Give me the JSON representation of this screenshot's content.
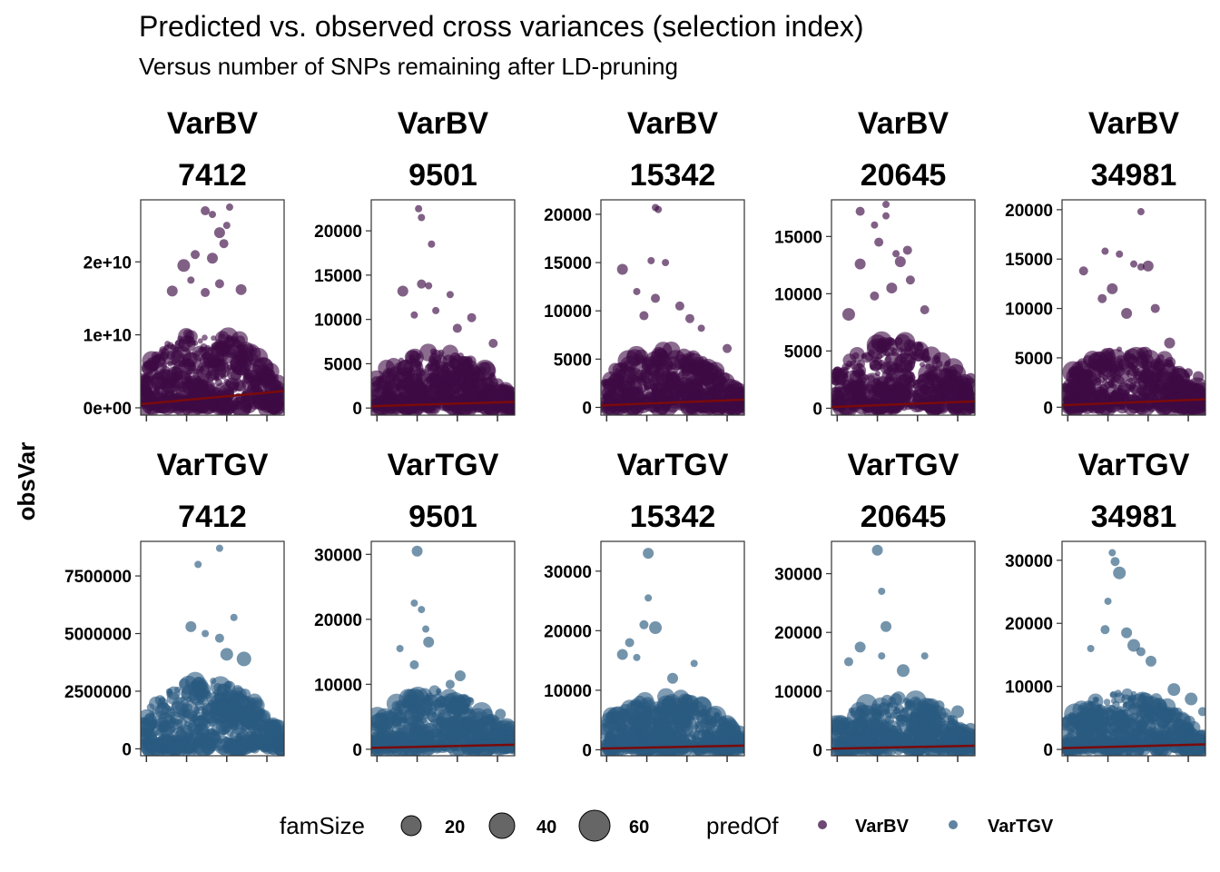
{
  "title": "Predicted vs. observed cross variances (selection index)",
  "subtitle": "Versus number of SNPs remaining after LD-pruning",
  "ylabel": "obsVar",
  "legend": {
    "size_title": "famSize",
    "size_values": [
      "20",
      "40",
      "60"
    ],
    "color_title": "predOf",
    "color_entries": [
      {
        "label": "VarBV",
        "color": "#3d0a45"
      },
      {
        "label": "VarTGV",
        "color": "#2a5a80"
      }
    ]
  },
  "colors": {
    "VarBV": "#3d0a45",
    "VarTGV": "#2a5a80",
    "fit_line": "#7a0a0a"
  },
  "chart_data": [
    {
      "type": "scatter",
      "strip": [
        "VarBV",
        "7412"
      ],
      "predOf": "VarBV",
      "yticks": [
        "0e+00",
        "1e+10",
        "2e+10"
      ],
      "ytick_values": [
        0,
        10000000000,
        20000000000
      ],
      "ylim": [
        -1000000000,
        28500000000
      ],
      "fit": [
        500000000,
        2300000000
      ],
      "dense_max": 11000000000,
      "outliers": [
        [
          0.45,
          27000000000,
          5
        ],
        [
          0.5,
          26500000000,
          4
        ],
        [
          0.62,
          27500000000,
          4
        ],
        [
          0.55,
          24000000000,
          6
        ],
        [
          0.6,
          25000000000,
          4
        ],
        [
          0.58,
          22500000000,
          5
        ],
        [
          0.3,
          19500000000,
          7
        ],
        [
          0.38,
          21000000000,
          5
        ],
        [
          0.5,
          20500000000,
          6
        ],
        [
          0.35,
          17500000000,
          4
        ],
        [
          0.55,
          17000000000,
          5
        ],
        [
          0.22,
          16000000000,
          6
        ],
        [
          0.7,
          16200000000,
          6
        ],
        [
          0.45,
          15800000000,
          5
        ]
      ]
    },
    {
      "type": "scatter",
      "strip": [
        "VarBV",
        "9501"
      ],
      "predOf": "VarBV",
      "yticks": [
        "0",
        "5000",
        "10000",
        "15000",
        "20000"
      ],
      "ytick_values": [
        0,
        5000,
        10000,
        15000,
        20000
      ],
      "ylim": [
        -800,
        23500
      ],
      "fit": [
        200,
        700
      ],
      "dense_max": 6500,
      "outliers": [
        [
          0.33,
          22500,
          4
        ],
        [
          0.35,
          21500,
          4
        ],
        [
          0.42,
          18500,
          4
        ],
        [
          0.22,
          13200,
          6
        ],
        [
          0.35,
          14000,
          5
        ],
        [
          0.4,
          13800,
          4
        ],
        [
          0.55,
          12800,
          4
        ],
        [
          0.7,
          10200,
          5
        ],
        [
          0.45,
          11000,
          4
        ],
        [
          0.85,
          7300,
          5
        ],
        [
          0.3,
          10500,
          4
        ],
        [
          0.6,
          9000,
          5
        ]
      ]
    },
    {
      "type": "scatter",
      "strip": [
        "VarBV",
        "15342"
      ],
      "predOf": "VarBV",
      "yticks": [
        "0",
        "5000",
        "10000",
        "15000",
        "20000"
      ],
      "ytick_values": [
        0,
        5000,
        10000,
        15000,
        20000
      ],
      "ylim": [
        -800,
        21500
      ],
      "fit": [
        200,
        800
      ],
      "dense_max": 6000,
      "outliers": [
        [
          0.38,
          20700,
          4
        ],
        [
          0.4,
          20500,
          4
        ],
        [
          0.15,
          14300,
          6
        ],
        [
          0.35,
          15200,
          4
        ],
        [
          0.45,
          15000,
          4
        ],
        [
          0.25,
          12000,
          4
        ],
        [
          0.38,
          11300,
          5
        ],
        [
          0.55,
          10500,
          5
        ],
        [
          0.62,
          9200,
          5
        ],
        [
          0.88,
          6100,
          5
        ],
        [
          0.7,
          8200,
          4
        ],
        [
          0.3,
          9500,
          5
        ]
      ]
    },
    {
      "type": "scatter",
      "strip": [
        "VarBV",
        "20645"
      ],
      "predOf": "VarBV",
      "yticks": [
        "0",
        "5000",
        "10000",
        "15000"
      ],
      "ytick_values": [
        0,
        5000,
        10000,
        15000
      ],
      "ylim": [
        -600,
        18200
      ],
      "fit": [
        100,
        600
      ],
      "dense_max": 6000,
      "outliers": [
        [
          0.2,
          17200,
          5
        ],
        [
          0.38,
          17800,
          4
        ],
        [
          0.38,
          16800,
          4
        ],
        [
          0.3,
          16000,
          4
        ],
        [
          0.33,
          14500,
          5
        ],
        [
          0.45,
          13500,
          4
        ],
        [
          0.53,
          13800,
          5
        ],
        [
          0.48,
          12800,
          6
        ],
        [
          0.2,
          12600,
          6
        ],
        [
          0.42,
          10500,
          6
        ],
        [
          0.55,
          11200,
          5
        ],
        [
          0.12,
          8200,
          7
        ],
        [
          0.3,
          9800,
          5
        ],
        [
          0.65,
          8600,
          5
        ],
        [
          0.97,
          2600,
          6
        ]
      ]
    },
    {
      "type": "scatter",
      "strip": [
        "VarBV",
        "34981"
      ],
      "predOf": "VarBV",
      "yticks": [
        "0",
        "5000",
        "10000",
        "15000",
        "20000"
      ],
      "ytick_values": [
        0,
        5000,
        10000,
        15000,
        20000
      ],
      "ylim": [
        -800,
        21000
      ],
      "fit": [
        200,
        800
      ],
      "dense_max": 6000,
      "outliers": [
        [
          0.55,
          19800,
          4
        ],
        [
          0.3,
          15800,
          4
        ],
        [
          0.4,
          15500,
          4
        ],
        [
          0.5,
          14500,
          4
        ],
        [
          0.55,
          14200,
          4
        ],
        [
          0.6,
          14300,
          6
        ],
        [
          0.15,
          13800,
          5
        ],
        [
          0.35,
          12000,
          6
        ],
        [
          0.28,
          11000,
          5
        ],
        [
          0.45,
          9500,
          6
        ],
        [
          0.65,
          10000,
          5
        ],
        [
          0.75,
          6500,
          6
        ],
        [
          0.88,
          3500,
          5
        ],
        [
          0.95,
          3100,
          6
        ]
      ]
    },
    {
      "type": "scatter",
      "strip": [
        "VarTGV",
        "7412"
      ],
      "predOf": "VarTGV",
      "yticks": [
        "0",
        "2500000",
        "5000000",
        "7500000"
      ],
      "ytick_values": [
        0,
        2500000,
        5000000,
        7500000
      ],
      "ylim": [
        -300000,
        9000000
      ],
      "fit": null,
      "dense_max": 3000000,
      "outliers": [
        [
          0.55,
          8700000,
          4
        ],
        [
          0.4,
          8000000,
          4
        ],
        [
          0.65,
          5700000,
          4
        ],
        [
          0.35,
          5300000,
          6
        ],
        [
          0.45,
          5000000,
          4
        ],
        [
          0.55,
          4800000,
          5
        ],
        [
          0.6,
          4100000,
          7
        ],
        [
          0.72,
          3900000,
          8
        ]
      ]
    },
    {
      "type": "scatter",
      "strip": [
        "VarTGV",
        "9501"
      ],
      "predOf": "VarTGV",
      "yticks": [
        "0",
        "10000",
        "20000",
        "30000"
      ],
      "ytick_values": [
        0,
        10000,
        20000,
        30000
      ],
      "ylim": [
        -1000,
        32000
      ],
      "fit": [
        200,
        700
      ],
      "dense_max": 9000,
      "outliers": [
        [
          0.32,
          30500,
          6
        ],
        [
          0.3,
          22500,
          4
        ],
        [
          0.35,
          21500,
          4
        ],
        [
          0.38,
          18500,
          4
        ],
        [
          0.4,
          16500,
          6
        ],
        [
          0.2,
          15500,
          4
        ],
        [
          0.3,
          13000,
          5
        ],
        [
          0.62,
          11300,
          6
        ],
        [
          0.9,
          5400,
          6
        ],
        [
          0.97,
          3400,
          7
        ],
        [
          0.55,
          10000,
          5
        ]
      ]
    },
    {
      "type": "scatter",
      "strip": [
        "VarTGV",
        "15342"
      ],
      "predOf": "VarTGV",
      "yticks": [
        "0",
        "10000",
        "20000",
        "30000"
      ],
      "ytick_values": [
        0,
        10000,
        20000,
        30000
      ],
      "ylim": [
        -1000,
        35000
      ],
      "fit": [
        200,
        700
      ],
      "dense_max": 9000,
      "outliers": [
        [
          0.33,
          33000,
          6
        ],
        [
          0.33,
          25500,
          4
        ],
        [
          0.3,
          21000,
          5
        ],
        [
          0.38,
          20500,
          7
        ],
        [
          0.2,
          18000,
          5
        ],
        [
          0.15,
          16000,
          6
        ],
        [
          0.25,
          15500,
          4
        ],
        [
          0.5,
          12000,
          6
        ],
        [
          0.65,
          14500,
          4
        ],
        [
          0.88,
          3800,
          6
        ],
        [
          0.97,
          3000,
          7
        ]
      ]
    },
    {
      "type": "scatter",
      "strip": [
        "VarTGV",
        "20645"
      ],
      "predOf": "VarTGV",
      "yticks": [
        "0",
        "10000",
        "20000",
        "30000"
      ],
      "ytick_values": [
        0,
        10000,
        20000,
        30000
      ],
      "ylim": [
        -1000,
        35500
      ],
      "fit": [
        200,
        700
      ],
      "dense_max": 9000,
      "outliers": [
        [
          0.32,
          34000,
          6
        ],
        [
          0.35,
          27000,
          4
        ],
        [
          0.38,
          21000,
          6
        ],
        [
          0.2,
          17500,
          6
        ],
        [
          0.12,
          15000,
          5
        ],
        [
          0.35,
          16000,
          4
        ],
        [
          0.5,
          13500,
          7
        ],
        [
          0.65,
          16000,
          4
        ],
        [
          0.75,
          7500,
          6
        ],
        [
          0.88,
          6500,
          7
        ],
        [
          0.97,
          3500,
          7
        ]
      ]
    },
    {
      "type": "scatter",
      "strip": [
        "VarTGV",
        "34981"
      ],
      "predOf": "VarTGV",
      "yticks": [
        "0",
        "10000",
        "20000",
        "30000"
      ],
      "ytick_values": [
        0,
        10000,
        20000,
        30000
      ],
      "ylim": [
        -1000,
        33000
      ],
      "fit": [
        200,
        800
      ],
      "dense_max": 9000,
      "outliers": [
        [
          0.35,
          31200,
          4
        ],
        [
          0.37,
          29800,
          5
        ],
        [
          0.4,
          28000,
          7
        ],
        [
          0.32,
          23500,
          4
        ],
        [
          0.3,
          19000,
          5
        ],
        [
          0.45,
          18500,
          6
        ],
        [
          0.5,
          16500,
          7
        ],
        [
          0.55,
          15500,
          5
        ],
        [
          0.2,
          16000,
          4
        ],
        [
          0.62,
          14000,
          6
        ],
        [
          0.78,
          9500,
          7
        ],
        [
          0.9,
          8000,
          7
        ],
        [
          0.98,
          6000,
          5
        ]
      ]
    }
  ]
}
